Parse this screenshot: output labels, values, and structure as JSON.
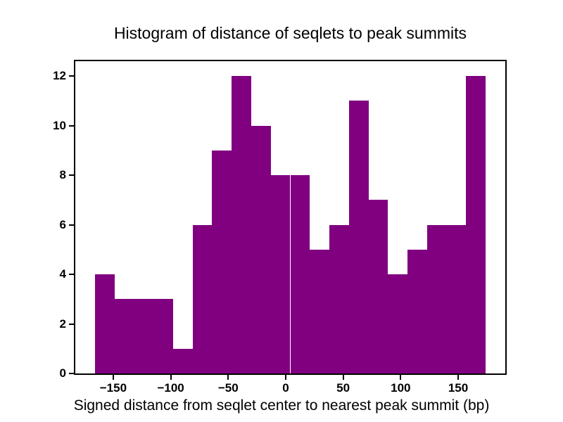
{
  "chart_data": {
    "type": "bar",
    "subtype": "histogram",
    "title": "Histogram of distance of seqlets to peak summits",
    "xlabel": "Signed distance from seqlet center to nearest peak summit (bp)",
    "ylabel": "",
    "bar_color": "#800080",
    "bin_edges": [
      -166,
      -149,
      -132,
      -115,
      -98,
      -81,
      -64,
      -47,
      -30,
      -13,
      4,
      21,
      38,
      55,
      72,
      89,
      106,
      123,
      140,
      157,
      174
    ],
    "values": [
      4,
      3,
      3,
      3,
      1,
      6,
      9,
      12,
      10,
      8,
      8,
      5,
      6,
      11,
      7,
      4,
      5,
      6,
      6,
      12
    ],
    "total_count": 129,
    "xlim": [
      -183,
      191
    ],
    "ylim": [
      0,
      12.6
    ],
    "xticks": [
      -150,
      -100,
      -50,
      0,
      50,
      100,
      150
    ],
    "xtick_labels": [
      "−150",
      "−100",
      "−50",
      "0",
      "50",
      "100",
      "150"
    ],
    "yticks": [
      0,
      2,
      4,
      6,
      8,
      10,
      12
    ],
    "ytick_labels": [
      "0",
      "2",
      "4",
      "6",
      "8",
      "10",
      "12"
    ],
    "grid": false
  }
}
